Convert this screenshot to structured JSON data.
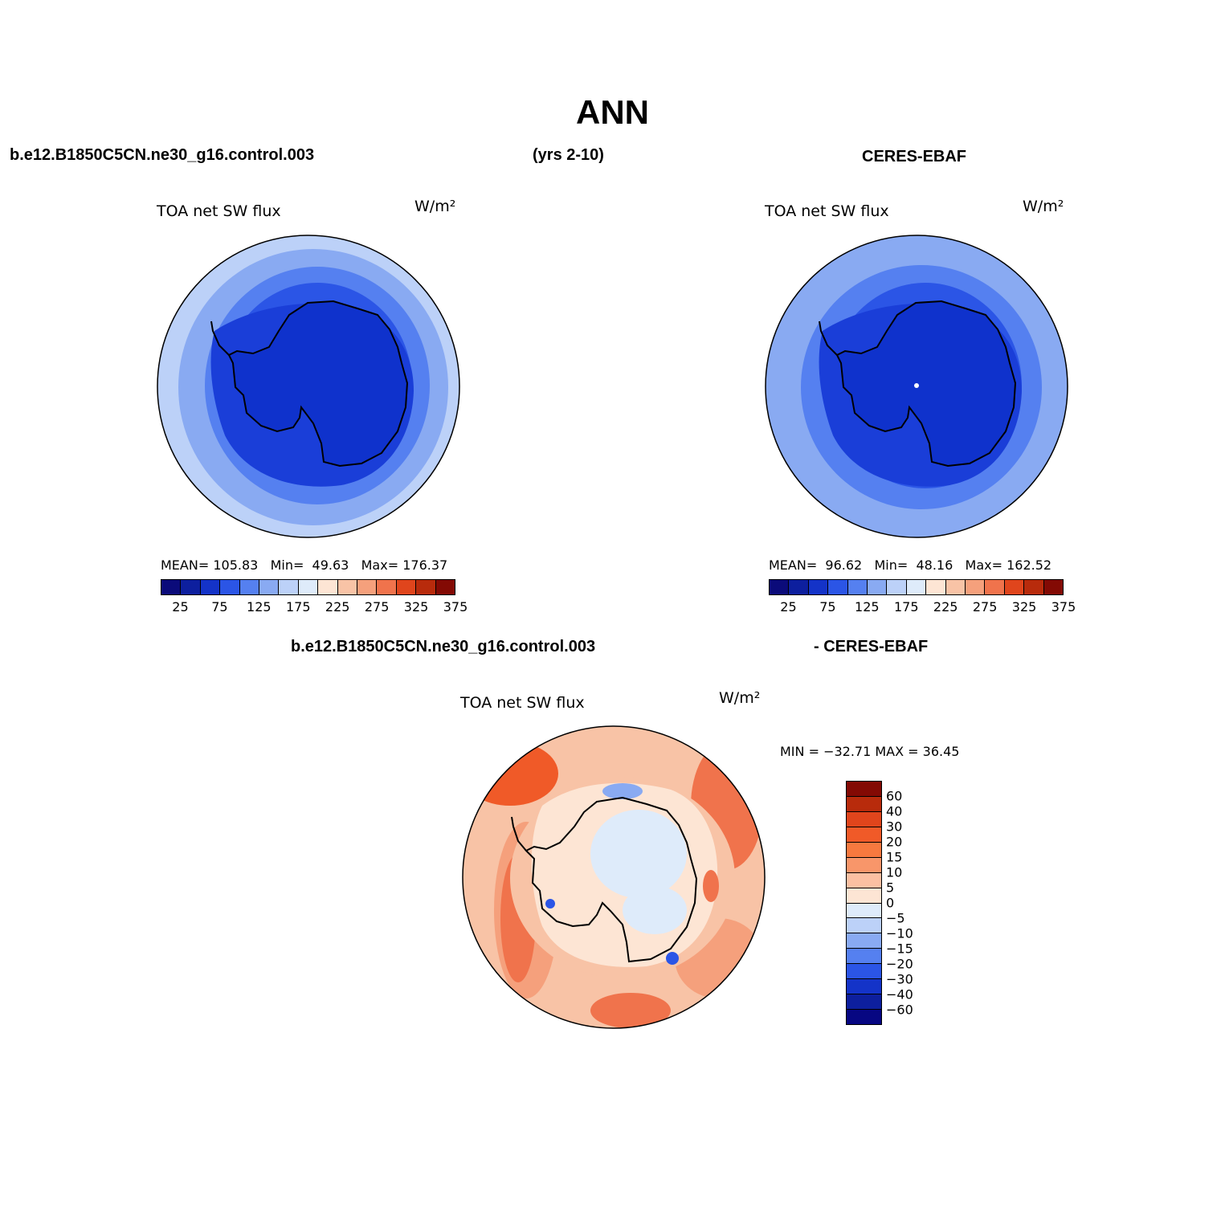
{
  "figure": {
    "title": "ANN",
    "model_case": "b.e12.B1850C5CN.ne30_g16.control.003",
    "years": "(yrs 2-10)",
    "obs_name": "CERES-EBAF",
    "diff_header_left": "b.e12.B1850C5CN.ne30_g16.control.003",
    "diff_header_right": "- CERES-EBAF"
  },
  "panels": {
    "model": {
      "variable": "TOA net SW flux",
      "units": "W/m²",
      "mean_label": "MEAN=",
      "mean": "105.83",
      "min_label": "Min=",
      "min": "49.63",
      "max_label": "Max=",
      "max": "176.37"
    },
    "obs": {
      "variable": "TOA net SW flux",
      "units": "W/m²",
      "mean_label": "MEAN=",
      "mean": "96.62",
      "min_label": "Min=",
      "min": "48.16",
      "max_label": "Max=",
      "max": "162.52"
    },
    "diff": {
      "variable": "TOA net SW flux",
      "units": "W/m²",
      "minmax_text": "MIN = −32.71 MAX =  36.45"
    }
  },
  "colorbars": {
    "absolute": {
      "colors": [
        "#0b0b7a",
        "#0d1f9e",
        "#1433c8",
        "#2b55e6",
        "#5580f0",
        "#89aaf2",
        "#bcd1f8",
        "#deebfa",
        "#fde5d4",
        "#f8c3a6",
        "#f5a07c",
        "#f0734c",
        "#e0451c",
        "#b82b0c",
        "#830a04"
      ],
      "tick_labels": [
        "25",
        "75",
        "125",
        "175",
        "225",
        "275",
        "325",
        "375"
      ]
    },
    "difference": {
      "colors": [
        "#830a04",
        "#b82b0c",
        "#e0451c",
        "#f05a28",
        "#f7793f",
        "#f8966a",
        "#fbc0a2",
        "#fde5d4",
        "#deebfa",
        "#bcd1f8",
        "#89aaf2",
        "#5580f0",
        "#2b55e6",
        "#1433c8",
        "#0d1f9e",
        "#070782"
      ],
      "tick_labels": [
        "60",
        "40",
        "30",
        "20",
        "15",
        "10",
        "5",
        "0",
        "−5",
        "−10",
        "−15",
        "−20",
        "−30",
        "−40",
        "−60"
      ]
    }
  }
}
